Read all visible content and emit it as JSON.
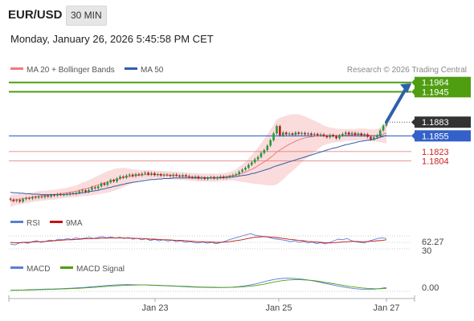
{
  "header": {
    "symbol": "EUR/USD",
    "timeframe": "30 MIN",
    "datetime": "Monday, January 26, 2026 5:45:58 PM CET"
  },
  "colors": {
    "candle_up": "#1e9e3a",
    "candle_down": "#c21515",
    "ma20": "#f07a7a",
    "bollinger_fill": "#fbdcdc",
    "ma50": "#2f5fa8",
    "resistance": "#4f9e12",
    "pivot": "#3461c9",
    "support": "#e07070",
    "arrow": "#2f5fa8",
    "rsi": "#5b7fd6",
    "rsi_ma": "#c21515",
    "macd": "#5b7fd6",
    "macd_signal": "#4f9e12"
  },
  "chart_data": [
    {
      "type": "candlestick",
      "panel": "price",
      "legend": [
        {
          "name": "MA 20 + Bollinger Bands",
          "color": "#f07a7a"
        },
        {
          "name": "MA 50",
          "color": "#2f5fa8"
        }
      ],
      "credit": "Research © 2026 Trading Central",
      "x_ticks": [
        "Jan 23",
        "Jan 25",
        "Jan 27"
      ],
      "ylim": [
        1.17,
        1.1975
      ],
      "levels": [
        {
          "label": "1.1964",
          "value": 1.1964,
          "kind": "resistance"
        },
        {
          "label": "1.1945",
          "value": 1.1945,
          "kind": "resistance"
        },
        {
          "label": "1.1883",
          "value": 1.1883,
          "kind": "last"
        },
        {
          "label": "1.1855",
          "value": 1.1855,
          "kind": "pivot"
        },
        {
          "label": "1.1823",
          "value": 1.1823,
          "kind": "support"
        },
        {
          "label": "1.1804",
          "value": 1.1804,
          "kind": "support"
        }
      ],
      "close": [
        1.1725,
        1.1722,
        1.1724,
        1.1721,
        1.1726,
        1.1728,
        1.1727,
        1.173,
        1.1729,
        1.1731,
        1.173,
        1.1733,
        1.1731,
        1.1734,
        1.1733,
        1.1736,
        1.1735,
        1.1735,
        1.1736,
        1.1738,
        1.1737,
        1.1739,
        1.1742,
        1.1744,
        1.1741,
        1.1745,
        1.175,
        1.1748,
        1.1752,
        1.1758,
        1.1755,
        1.176,
        1.1765,
        1.1762,
        1.1768,
        1.1772,
        1.177,
        1.1774,
        1.1776,
        1.1773,
        1.1777,
        1.1775,
        1.1778,
        1.178,
        1.1776,
        1.1779,
        1.1775,
        1.1777,
        1.1774,
        1.1776,
        1.1775,
        1.1773,
        1.1776,
        1.1774,
        1.1772,
        1.1775,
        1.1773,
        1.1771,
        1.177,
        1.1772,
        1.1768,
        1.177,
        1.1767,
        1.1769,
        1.1771,
        1.1768,
        1.177,
        1.1772,
        1.1769,
        1.1771,
        1.1773,
        1.1775,
        1.1777,
        1.1782,
        1.1786,
        1.179,
        1.1796,
        1.1801,
        1.1807,
        1.1812,
        1.182,
        1.1826,
        1.1835,
        1.1846,
        1.186,
        1.1875,
        1.1856,
        1.1862,
        1.1858,
        1.186,
        1.1857,
        1.1862,
        1.1859,
        1.1861,
        1.1858,
        1.186,
        1.1857,
        1.1859,
        1.1856,
        1.1858,
        1.1855,
        1.1852,
        1.1857,
        1.1854,
        1.185,
        1.1856,
        1.1859,
        1.1862,
        1.1858,
        1.1861,
        1.1857,
        1.186,
        1.1856,
        1.1858,
        1.1853,
        1.1848,
        1.1852,
        1.1856,
        1.1866,
        1.1876,
        1.1883
      ],
      "ma20": [
        1.1722,
        1.1724,
        1.1725,
        1.1726,
        1.1727,
        1.1728,
        1.1729,
        1.173,
        1.1731,
        1.1732,
        1.1733,
        1.1733,
        1.1734,
        1.1735,
        1.1735,
        1.1736,
        1.1737,
        1.1738,
        1.1739,
        1.174,
        1.1741,
        1.1742,
        1.1744,
        1.1746,
        1.1747,
        1.1749,
        1.1751,
        1.1753,
        1.1755,
        1.1757,
        1.1759,
        1.1761,
        1.1763,
        1.1765,
        1.1767,
        1.1768,
        1.177,
        1.1771,
        1.1772,
        1.1773,
        1.1774,
        1.1775,
        1.1775,
        1.1776,
        1.1776,
        1.1776,
        1.1776,
        1.1776,
        1.1776,
        1.1775,
        1.1775,
        1.1775,
        1.1774,
        1.1774,
        1.1773,
        1.1773,
        1.1772,
        1.1772,
        1.1771,
        1.1771,
        1.177,
        1.177,
        1.177,
        1.177,
        1.177,
        1.177,
        1.177,
        1.1771,
        1.1771,
        1.1772,
        1.1773,
        1.1774,
        1.1775,
        1.1777,
        1.1779,
        1.1781,
        1.1784,
        1.1787,
        1.179,
        1.1794,
        1.1798,
        1.1802,
        1.1806,
        1.1811,
        1.1816,
        1.1822,
        1.1826,
        1.183,
        1.1834,
        1.1838,
        1.1841,
        1.1844,
        1.1847,
        1.1849,
        1.1851,
        1.1852,
        1.1853,
        1.1854,
        1.1855,
        1.1856,
        1.1856,
        1.1856,
        1.1856,
        1.1856,
        1.1856,
        1.1856,
        1.1856,
        1.1857,
        1.1857,
        1.1857,
        1.1857,
        1.1858,
        1.1858,
        1.1858,
        1.1857,
        1.1856,
        1.1856,
        1.1856,
        1.1857,
        1.1859,
        1.1861
      ],
      "bb_width": [
        0.0012,
        0.0012,
        0.0011,
        0.0011,
        0.001,
        0.001,
        0.001,
        0.001,
        0.001,
        0.001,
        0.001,
        0.001,
        0.001,
        0.001,
        0.001,
        0.001,
        0.001,
        0.001,
        0.001,
        0.0011,
        0.0011,
        0.0012,
        0.0013,
        0.0014,
        0.0015,
        0.0016,
        0.0017,
        0.0018,
        0.0019,
        0.002,
        0.0021,
        0.0022,
        0.0022,
        0.0022,
        0.0022,
        0.0021,
        0.002,
        0.0018,
        0.0016,
        0.0014,
        0.0012,
        0.0011,
        0.001,
        0.0009,
        0.0009,
        0.0009,
        0.0008,
        0.0008,
        0.0008,
        0.0008,
        0.0008,
        0.0008,
        0.0008,
        0.0008,
        0.0008,
        0.0008,
        0.0008,
        0.0008,
        0.0008,
        0.0008,
        0.0008,
        0.0008,
        0.0008,
        0.0008,
        0.0008,
        0.0008,
        0.0008,
        0.0008,
        0.0008,
        0.0008,
        0.0009,
        0.001,
        0.0012,
        0.0015,
        0.0018,
        0.0021,
        0.0025,
        0.0029,
        0.0033,
        0.0037,
        0.0042,
        0.0047,
        0.0052,
        0.0057,
        0.0062,
        0.0066,
        0.0066,
        0.0064,
        0.0062,
        0.006,
        0.0058,
        0.0055,
        0.0052,
        0.0048,
        0.0044,
        0.004,
        0.0036,
        0.0032,
        0.0028,
        0.0024,
        0.002,
        0.0018,
        0.0016,
        0.0015,
        0.0014,
        0.0013,
        0.0013,
        0.0012,
        0.0012,
        0.0012,
        0.0012,
        0.0012,
        0.0012,
        0.0012,
        0.0012,
        0.0012,
        0.0012,
        0.0013,
        0.0015,
        0.0018,
        0.0022
      ],
      "ma50": [
        1.174,
        1.1739,
        1.1739,
        1.1738,
        1.1738,
        1.1737,
        1.1737,
        1.1736,
        1.1736,
        1.1736,
        1.1735,
        1.1735,
        1.1735,
        1.1735,
        1.1735,
        1.1735,
        1.1735,
        1.1735,
        1.1736,
        1.1736,
        1.1737,
        1.1737,
        1.1738,
        1.1739,
        1.174,
        1.1741,
        1.1742,
        1.1743,
        1.1744,
        1.1746,
        1.1747,
        1.1749,
        1.175,
        1.1752,
        1.1753,
        1.1755,
        1.1756,
        1.1758,
        1.1759,
        1.176,
        1.1761,
        1.1762,
        1.1763,
        1.1764,
        1.1765,
        1.1766,
        1.1766,
        1.1767,
        1.1767,
        1.1768,
        1.1768,
        1.1768,
        1.1769,
        1.1769,
        1.1769,
        1.1769,
        1.1769,
        1.1769,
        1.1769,
        1.1769,
        1.1769,
        1.1769,
        1.1769,
        1.1769,
        1.1769,
        1.1769,
        1.1769,
        1.1769,
        1.177,
        1.177,
        1.1771,
        1.1771,
        1.1772,
        1.1773,
        1.1774,
        1.1775,
        1.1776,
        1.1778,
        1.1779,
        1.1781,
        1.1783,
        1.1785,
        1.1787,
        1.1789,
        1.1792,
        1.1794,
        1.1796,
        1.1798,
        1.18,
        1.1802,
        1.1804,
        1.1806,
        1.1808,
        1.181,
        1.1812,
        1.1814,
        1.1816,
        1.1818,
        1.182,
        1.1822,
        1.1824,
        1.1826,
        1.1828,
        1.183,
        1.1831,
        1.1833,
        1.1835,
        1.1837,
        1.1838,
        1.184,
        1.1841,
        1.1843,
        1.1844,
        1.1845,
        1.1846,
        1.1847,
        1.1848,
        1.185,
        1.1852,
        1.1854,
        1.1856
      ]
    },
    {
      "type": "line",
      "panel": "rsi",
      "legend": [
        {
          "name": "RSI",
          "color": "#5b7fd6"
        },
        {
          "name": "9MA",
          "color": "#c21515"
        }
      ],
      "levels": [
        {
          "label": "62.27",
          "value": 62.27
        },
        {
          "label": "30",
          "value": 30
        }
      ],
      "ylim": [
        0,
        100
      ],
      "series": [
        {
          "name": "RSI",
          "values": [
            45,
            42,
            48,
            50,
            47,
            52,
            55,
            50,
            53,
            57,
            55,
            60,
            58,
            62,
            59,
            64,
            61,
            63,
            66,
            62,
            65,
            68,
            64,
            67,
            63,
            66,
            62,
            65,
            60,
            63,
            58,
            61,
            56,
            59,
            55,
            58,
            54,
            57,
            52,
            55,
            50,
            53,
            49,
            48,
            51,
            47,
            50,
            46,
            49,
            53,
            58,
            62,
            66,
            70,
            74,
            77,
            72,
            70,
            68,
            66,
            62,
            60,
            58,
            56,
            52,
            55,
            50,
            53,
            48,
            51,
            46,
            49,
            45,
            50,
            55,
            60,
            58,
            62,
            55,
            52,
            50,
            48,
            54,
            58,
            62,
            64,
            62
          ]
        },
        {
          "name": "9MA",
          "values": [
            50,
            49,
            49,
            50,
            50,
            51,
            52,
            52,
            53,
            54,
            55,
            56,
            57,
            58,
            58,
            59,
            60,
            61,
            61,
            62,
            62,
            63,
            63,
            64,
            64,
            64,
            64,
            63,
            63,
            62,
            62,
            61,
            60,
            60,
            59,
            58,
            58,
            57,
            56,
            56,
            55,
            54,
            53,
            52,
            52,
            51,
            51,
            50,
            50,
            51,
            52,
            54,
            56,
            58,
            61,
            64,
            66,
            67,
            68,
            67,
            66,
            65,
            63,
            61,
            59,
            58,
            56,
            55,
            53,
            52,
            51,
            50,
            49,
            48,
            49,
            50,
            51,
            52,
            53,
            53,
            52,
            52,
            53,
            54,
            55,
            56,
            58
          ]
        }
      ]
    },
    {
      "type": "line",
      "panel": "macd",
      "legend": [
        {
          "name": "MACD",
          "color": "#5b7fd6"
        },
        {
          "name": "MACD Signal",
          "color": "#4f9e12"
        }
      ],
      "levels": [
        {
          "label": "0.00",
          "value": 0.0
        }
      ],
      "x_ticks": [
        "Jan 23",
        "Jan 25",
        "Jan 27"
      ],
      "series": [
        {
          "name": "MACD",
          "values": [
            0.2,
            0.3,
            0.4,
            0.6,
            0.8,
            1.0,
            1.1,
            1.2,
            1.4,
            1.6,
            1.8,
            2.1,
            2.4,
            2.8,
            3.2,
            3.6,
            4.0,
            4.3,
            4.5,
            4.6,
            4.5,
            4.4,
            4.3,
            4.1,
            3.9,
            3.7,
            3.5,
            3.3,
            3.0,
            2.8,
            2.6,
            2.5,
            2.4,
            2.3,
            2.3,
            2.4,
            2.6,
            3.0,
            3.6,
            4.4,
            5.4,
            6.6,
            7.8,
            8.8,
            9.4,
            9.6,
            9.4,
            9.0,
            8.4,
            7.6,
            6.6,
            5.6,
            4.6,
            3.6,
            2.8,
            2.0,
            1.4,
            1.0,
            0.8,
            1.0,
            1.6,
            2.4
          ]
        },
        {
          "name": "MACD Signal",
          "values": [
            0.1,
            0.2,
            0.3,
            0.4,
            0.5,
            0.7,
            0.8,
            0.9,
            1.1,
            1.3,
            1.5,
            1.7,
            2.0,
            2.3,
            2.6,
            3.0,
            3.3,
            3.6,
            3.9,
            4.1,
            4.2,
            4.3,
            4.3,
            4.2,
            4.1,
            3.9,
            3.7,
            3.5,
            3.3,
            3.1,
            2.9,
            2.7,
            2.6,
            2.5,
            2.4,
            2.4,
            2.5,
            2.7,
            3.0,
            3.4,
            4.0,
            4.8,
            5.8,
            6.8,
            7.6,
            8.2,
            8.4,
            8.4,
            8.2,
            7.8,
            7.2,
            6.4,
            5.6,
            4.8,
            4.0,
            3.2,
            2.6,
            2.0,
            1.6,
            1.4,
            1.4,
            1.6
          ]
        }
      ]
    }
  ]
}
